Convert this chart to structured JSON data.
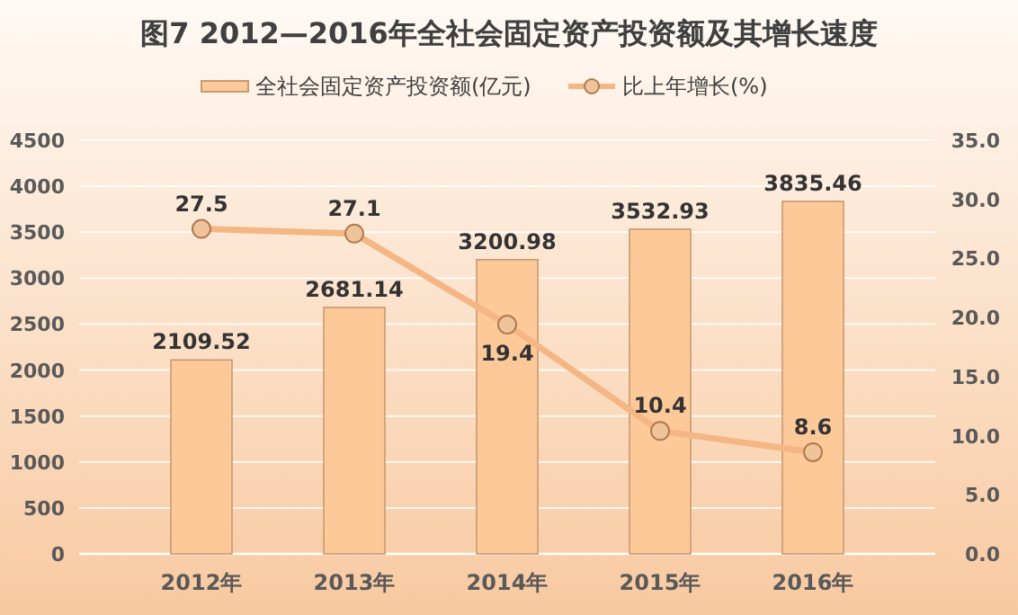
{
  "chart_data": {
    "type": "bar",
    "title": "图7  2012—2016年全社会固定资产投资额及其增长速度",
    "categories": [
      "2012年",
      "2013年",
      "2014年",
      "2015年",
      "2016年"
    ],
    "series": [
      {
        "name": "全社会固定资产投资额(亿元)",
        "color": "#fdc998",
        "values": [
          2109.52,
          2681.14,
          3200.98,
          3532.93,
          3835.46
        ]
      },
      {
        "name": "比上年增长(%)",
        "type": "line",
        "axis": "y2",
        "color": "#f4b684",
        "values": [
          27.5,
          27.1,
          19.4,
          10.4,
          8.6
        ]
      }
    ],
    "ylim": [
      0,
      4500
    ],
    "yticks": [
      0,
      500,
      1000,
      1500,
      2000,
      2500,
      3000,
      3500,
      4000,
      4500
    ],
    "y2lim": [
      0,
      35
    ],
    "y2ticks": [
      {
        "value": 0,
        "label": "0.0"
      },
      {
        "value": 5,
        "label": "5.0"
      },
      {
        "value": 10,
        "label": "10.0"
      },
      {
        "value": 15,
        "label": "15.0"
      },
      {
        "value": 20,
        "label": "20.0"
      },
      {
        "value": 25,
        "label": "25.0"
      },
      {
        "value": 30,
        "label": "30.0"
      },
      {
        "value": 35,
        "label": "35.0"
      }
    ],
    "grid": "y",
    "legend": "top",
    "data_labels": true,
    "marker": "circle",
    "line_style": "solid"
  }
}
